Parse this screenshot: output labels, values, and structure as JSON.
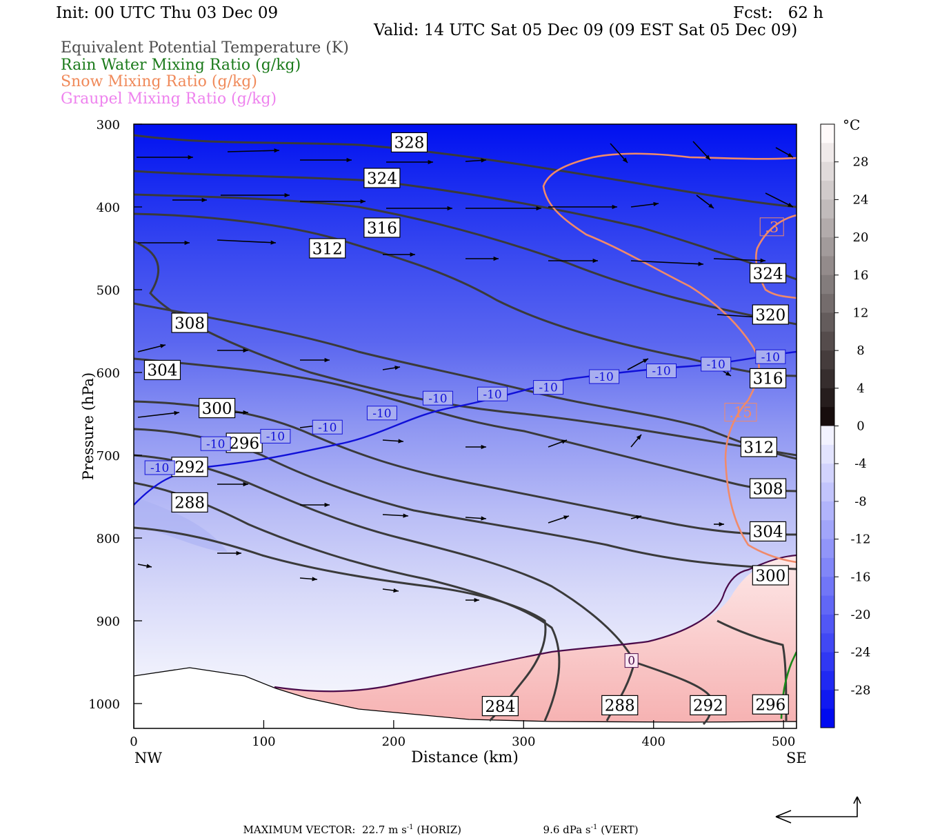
{
  "header": {
    "init": "Init: 00 UTC Thu 03 Dec 09",
    "fcst": "Fcst:   62 h",
    "valid": "Valid: 14 UTC Sat 05 Dec 09 (09 EST Sat 05 Dec 09)"
  },
  "legend": [
    {
      "label": "Equivalent Potential Temperature (K)",
      "color": "#4a4a4a"
    },
    {
      "label": "Rain Water Mixing Ratio (g/kg)",
      "color": "#1a7a1a"
    },
    {
      "label": "Snow Mixing Ratio (g/kg)",
      "color": "#f08a5a"
    },
    {
      "label": "Graupel Mixing Ratio (g/kg)",
      "color": "#ee82ee"
    }
  ],
  "chart_data": {
    "type": "cross-section",
    "xlabel": "Distance (km)",
    "ylabel": "Pressure (hPa)",
    "xlim": [
      0,
      510
    ],
    "ylim": [
      1030,
      300
    ],
    "x_ticks": [
      0,
      100,
      200,
      300,
      400,
      500
    ],
    "y_ticks": [
      300,
      400,
      500,
      600,
      700,
      800,
      900,
      1000
    ],
    "x_end_labels": {
      "left": "NW",
      "right": "SE"
    },
    "colorbar": {
      "unit": "°C",
      "tick_labels": [
        28,
        24,
        20,
        16,
        12,
        8,
        4,
        0,
        -4,
        -8,
        -12,
        -16,
        -20,
        -24,
        -28
      ],
      "range": [
        -32,
        32
      ]
    },
    "theta_e_labels": [
      {
        "v": "328",
        "x": 212,
        "p": 322
      },
      {
        "v": "324",
        "x": 191,
        "p": 365
      },
      {
        "v": "316",
        "x": 191,
        "p": 425
      },
      {
        "v": "312",
        "x": 149,
        "p": 450
      },
      {
        "v": "308",
        "x": 43,
        "p": 540
      },
      {
        "v": "304",
        "x": 22,
        "p": 597
      },
      {
        "v": "300",
        "x": 64,
        "p": 643
      },
      {
        "v": "296",
        "x": 85,
        "p": 685
      },
      {
        "v": "292",
        "x": 43,
        "p": 714
      },
      {
        "v": "288",
        "x": 43,
        "p": 757
      },
      {
        "v": "284",
        "x": 282,
        "p": 1003
      },
      {
        "v": "288",
        "x": 374,
        "p": 1002
      },
      {
        "v": "292",
        "x": 442,
        "p": 1002
      },
      {
        "v": "296",
        "x": 490,
        "p": 1001
      },
      {
        "v": "300",
        "x": 490,
        "p": 845
      },
      {
        "v": "304",
        "x": 488,
        "p": 792
      },
      {
        "v": "308",
        "x": 488,
        "p": 740
      },
      {
        "v": "312",
        "x": 481,
        "p": 690
      },
      {
        "v": "316",
        "x": 488,
        "p": 607
      },
      {
        "v": "320",
        "x": 490,
        "p": 530
      },
      {
        "v": "324",
        "x": 488,
        "p": 480
      }
    ],
    "isotherm_labels": [
      {
        "v": "-10",
        "x": 20,
        "p": 715
      },
      {
        "v": "-10",
        "x": 63,
        "p": 686
      },
      {
        "v": "-10",
        "x": 109,
        "p": 677
      },
      {
        "v": "-10",
        "x": 149,
        "p": 666
      },
      {
        "v": "-10",
        "x": 191,
        "p": 649
      },
      {
        "v": "-10",
        "x": 234,
        "p": 631
      },
      {
        "v": "-10",
        "x": 276,
        "p": 626
      },
      {
        "v": "-10",
        "x": 319,
        "p": 618
      },
      {
        "v": "-10",
        "x": 362,
        "p": 605
      },
      {
        "v": "-10",
        "x": 406,
        "p": 598
      },
      {
        "v": "-10",
        "x": 448,
        "p": 590
      },
      {
        "v": "-10",
        "x": 490,
        "p": 581
      },
      {
        "v": "0",
        "x": 383,
        "p": 948
      }
    ],
    "snow_labels": [
      {
        "v": ".3",
        "x": 491,
        "p": 424
      },
      {
        "v": ".15",
        "x": 467,
        "p": 648
      }
    ],
    "footer": {
      "max_vector_label": "MAXIMUM VECTOR:",
      "horiz": "22.7 m s",
      "horiz_exp": "-1",
      "horiz_tail": " (HORIZ)",
      "vert": "9.6 dPa s",
      "vert_exp": "-1",
      "vert_tail": " (VERT)"
    }
  }
}
